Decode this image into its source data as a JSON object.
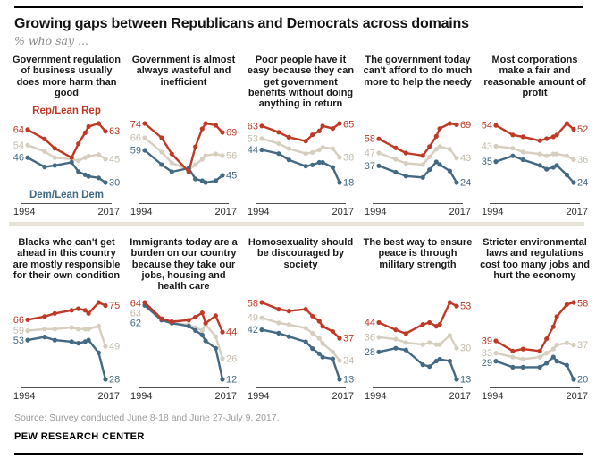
{
  "header": {
    "title": "Growing gaps between Republicans and Democrats across domains",
    "subtitle": "% who say ..."
  },
  "legend": {
    "rep": "Rep/Lean Rep",
    "dem": "Dem/Lean Dem"
  },
  "axis": {
    "start": "1994",
    "end": "2017"
  },
  "footer": {
    "source": "Source: Survey conducted June 8-18 and June 27-July 9, 2017.",
    "brand": "PEW RESEARCH CENTER"
  },
  "colors": {
    "rep_line": "#bf3927",
    "rep_label": "#bf3927",
    "dem_line": "#436983",
    "dem_label": "#436983",
    "total_line": "#d6cfc0",
    "total_label": "#c4bcab",
    "axis_line": "#4d4d4d",
    "row_separator": "#e7e3d6"
  },
  "chart_data": [
    {
      "type": "line",
      "title": "Government regulation of business usually does more harm than good",
      "x": [
        1994,
        1999,
        2002,
        2007,
        2009,
        2011,
        2012,
        2015,
        2017
      ],
      "xlabels": [
        "1994",
        "2017"
      ],
      "series": [
        {
          "role": "total",
          "values": [
            54,
            50,
            46,
            45,
            44,
            46,
            47,
            48,
            45
          ]
        },
        {
          "role": "dem",
          "name": "Dem/Lean Dem",
          "values": [
            46,
            40,
            41,
            43,
            37,
            35,
            34,
            33,
            30
          ]
        },
        {
          "role": "rep",
          "name": "Rep/Lean Rep",
          "values": [
            64,
            58,
            52,
            46,
            55,
            62,
            66,
            68,
            63
          ]
        }
      ]
    },
    {
      "type": "line",
      "title": "Government is almost always wasteful and inefficient",
      "x": [
        1994,
        1999,
        2002,
        2007,
        2009,
        2011,
        2012,
        2015,
        2017
      ],
      "xlabels": [
        "1994",
        "2017"
      ],
      "series": [
        {
          "role": "total",
          "values": [
            66,
            58,
            52,
            48,
            51,
            54,
            56,
            57,
            56
          ]
        },
        {
          "role": "dem",
          "name": "Dem/Lean Dem",
          "values": [
            59,
            51,
            47,
            49,
            43,
            42,
            41,
            42,
            45
          ]
        },
        {
          "role": "rep",
          "name": "Rep/Lean Rep",
          "values": [
            74,
            66,
            57,
            47,
            61,
            71,
            74,
            73,
            69
          ]
        }
      ]
    },
    {
      "type": "line",
      "title": "Poor people have it easy because they can get government benefits without doing anything in return",
      "x": [
        1994,
        1999,
        2002,
        2007,
        2009,
        2011,
        2012,
        2015,
        2017
      ],
      "xlabels": [
        "1994",
        "2017"
      ],
      "series": [
        {
          "role": "total",
          "values": [
            53,
            49,
            45,
            41,
            42,
            44,
            46,
            45,
            38
          ]
        },
        {
          "role": "dem",
          "name": "Dem/Lean Dem",
          "values": [
            44,
            41,
            36,
            31,
            32,
            34,
            34,
            30,
            18
          ]
        },
        {
          "role": "rep",
          "name": "Rep/Lean Rep",
          "values": [
            63,
            58,
            54,
            51,
            56,
            59,
            63,
            61,
            65
          ]
        }
      ]
    },
    {
      "type": "line",
      "title": "The government today can't afford to do much more to help the needy",
      "x": [
        1994,
        1999,
        2002,
        2007,
        2009,
        2011,
        2012,
        2015,
        2017
      ],
      "xlabels": [
        "1994",
        "2017"
      ],
      "series": [
        {
          "role": "total",
          "values": [
            47,
            42,
            39,
            38,
            44,
            50,
            52,
            50,
            43
          ]
        },
        {
          "role": "dem",
          "name": "Dem/Lean Dem",
          "values": [
            37,
            32,
            29,
            28,
            34,
            40,
            38,
            33,
            24
          ]
        },
        {
          "role": "rep",
          "name": "Rep/Lean Rep",
          "values": [
            58,
            51,
            47,
            45,
            52,
            60,
            66,
            70,
            69
          ]
        }
      ]
    },
    {
      "type": "line",
      "title": "Most corporations make a fair and reasonable amount of profit",
      "x": [
        1994,
        1999,
        2002,
        2007,
        2009,
        2011,
        2012,
        2015,
        2017
      ],
      "xlabels": [
        "1994",
        "2017"
      ],
      "series": [
        {
          "role": "total",
          "values": [
            43,
            42,
            40,
            39,
            38,
            39,
            39,
            38,
            36
          ]
        },
        {
          "role": "dem",
          "name": "Dem/Lean Dem",
          "values": [
            35,
            38,
            36,
            33,
            31,
            32,
            33,
            28,
            24
          ]
        },
        {
          "role": "rep",
          "name": "Rep/Lean Rep",
          "values": [
            54,
            49,
            48,
            46,
            47,
            48,
            49,
            55,
            52
          ]
        }
      ]
    },
    {
      "type": "line",
      "title": "Blacks who can't get ahead in this country are mostly responsible for their own condition",
      "x": [
        1994,
        1999,
        2002,
        2007,
        2009,
        2011,
        2012,
        2015,
        2017
      ],
      "xlabels": [
        "1994",
        "2017"
      ],
      "series": [
        {
          "role": "total",
          "values": [
            59,
            60,
            60,
            61,
            60,
            60,
            60,
            62,
            49
          ]
        },
        {
          "role": "dem",
          "name": "Dem/Lean Dem",
          "values": [
            53,
            55,
            53,
            52,
            51,
            52,
            53,
            45,
            28
          ]
        },
        {
          "role": "rep",
          "name": "Rep/Lean Rep",
          "values": [
            66,
            68,
            70,
            72,
            73,
            72,
            70,
            77,
            75
          ]
        }
      ]
    },
    {
      "type": "line",
      "title": "Immigrants today are a burden on our country because they take our jobs, housing and health care",
      "x": [
        1994,
        1999,
        2002,
        2007,
        2009,
        2011,
        2012,
        2015,
        2017
      ],
      "xlabels": [
        "1994",
        "2017"
      ],
      "series": [
        {
          "role": "total",
          "values": [
            63,
            52,
            50,
            49,
            47,
            45,
            49,
            41,
            26
          ]
        },
        {
          "role": "dem",
          "name": "Dem/Lean Dem",
          "values": [
            62,
            52,
            50,
            48,
            45,
            42,
            38,
            33,
            12
          ]
        },
        {
          "role": "rep",
          "name": "Rep/Lean Rep",
          "values": [
            64,
            53,
            51,
            52,
            54,
            57,
            50,
            55,
            44
          ]
        }
      ]
    },
    {
      "type": "line",
      "title": "Homosexuality should be discouraged by society",
      "x": [
        1994,
        1999,
        2002,
        2007,
        2009,
        2011,
        2012,
        2015,
        2017
      ],
      "xlabels": [
        "1994",
        "2017"
      ],
      "series": [
        {
          "role": "total",
          "values": [
            49,
            46,
            45,
            43,
            40,
            37,
            34,
            29,
            24
          ]
        },
        {
          "role": "dem",
          "name": "Dem/Lean Dem",
          "values": [
            42,
            40,
            38,
            35,
            31,
            28,
            26,
            25,
            13
          ]
        },
        {
          "role": "rep",
          "name": "Rep/Lean Rep",
          "values": [
            58,
            54,
            53,
            54,
            50,
            47,
            44,
            41,
            37
          ]
        }
      ]
    },
    {
      "type": "line",
      "title": "The best way to ensure peace is through military strength",
      "x": [
        1994,
        1999,
        2002,
        2007,
        2009,
        2011,
        2012,
        2015,
        2017
      ],
      "xlabels": [
        "1994",
        "2017"
      ],
      "series": [
        {
          "role": "total",
          "values": [
            36,
            35,
            33,
            32,
            33,
            32,
            32,
            37,
            30
          ]
        },
        {
          "role": "dem",
          "name": "Dem/Lean Dem",
          "values": [
            28,
            30,
            29,
            21,
            20,
            23,
            24,
            23,
            13
          ]
        },
        {
          "role": "rep",
          "name": "Rep/Lean Rep",
          "values": [
            44,
            40,
            38,
            43,
            44,
            42,
            43,
            55,
            53
          ]
        }
      ]
    },
    {
      "type": "line",
      "title": "Stricter environmental laws and regulations cost too many jobs and hurt the economy",
      "x": [
        1994,
        1999,
        2002,
        2007,
        2009,
        2011,
        2012,
        2015,
        2017
      ],
      "xlabels": [
        "1994",
        "2017"
      ],
      "series": [
        {
          "role": "total",
          "values": [
            33,
            31,
            30,
            31,
            33,
            35,
            37,
            38,
            37
          ]
        },
        {
          "role": "dem",
          "name": "Dem/Lean Dem",
          "values": [
            29,
            26,
            26,
            26,
            28,
            31,
            29,
            27,
            20
          ]
        },
        {
          "role": "rep",
          "name": "Rep/Lean Rep",
          "values": [
            39,
            34,
            35,
            34,
            40,
            46,
            51,
            57,
            58
          ]
        }
      ]
    }
  ]
}
